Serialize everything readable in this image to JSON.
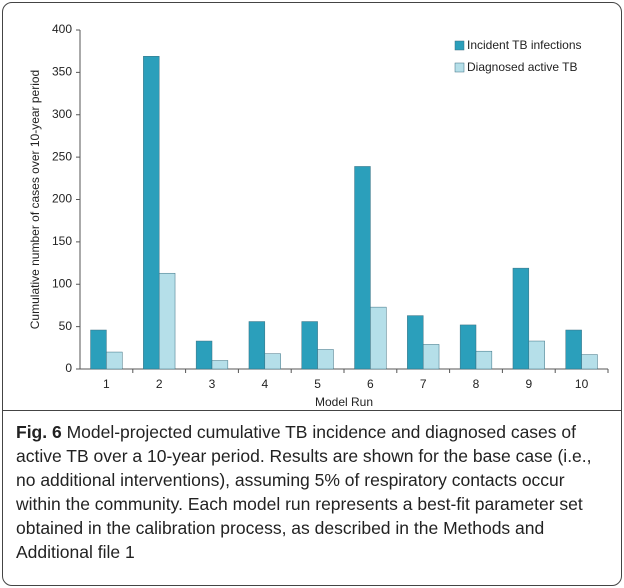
{
  "chart_data": {
    "type": "bar",
    "categories": [
      "1",
      "2",
      "3",
      "4",
      "5",
      "6",
      "7",
      "8",
      "9",
      "10"
    ],
    "series": [
      {
        "name": "Incident TB infections",
        "color": "#2b9fbb",
        "values": [
          46,
          369,
          33,
          56,
          56,
          239,
          63,
          52,
          119,
          46
        ]
      },
      {
        "name": "Diagnosed active TB",
        "color": "#b5dfe9",
        "values": [
          20,
          113,
          10,
          18,
          23,
          73,
          29,
          21,
          33,
          17
        ]
      }
    ],
    "xlabel": "Model Run",
    "ylabel": "Cumulative number of cases over 10-year period",
    "ylim": [
      0,
      400
    ],
    "yticks": [
      0,
      50,
      100,
      150,
      200,
      250,
      300,
      350,
      400
    ],
    "grid": false,
    "legend": "top-right"
  },
  "caption": {
    "label": "Fig. 6",
    "text": " Model-projected cumulative TB incidence and diagnosed cases of active TB over a 10-year period. Results are shown for the base case (i.e., no additional interventions), assuming 5% of respiratory contacts occur within the community. Each model run represents a best-fit parameter set obtained in the calibration process, as described in the Methods and Additional file 1"
  }
}
